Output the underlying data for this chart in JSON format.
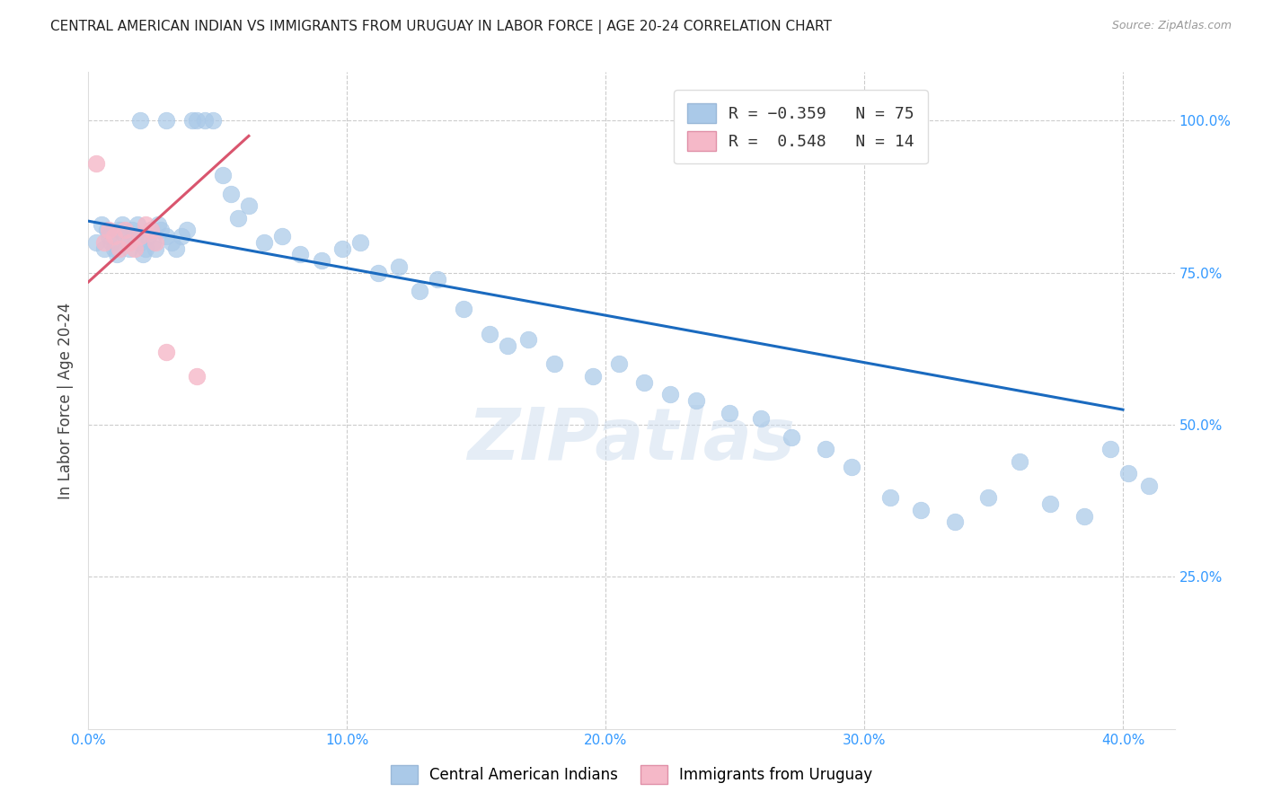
{
  "title": "CENTRAL AMERICAN INDIAN VS IMMIGRANTS FROM URUGUAY IN LABOR FORCE | AGE 20-24 CORRELATION CHART",
  "source": "Source: ZipAtlas.com",
  "ylabel": "In Labor Force | Age 20-24",
  "xlim": [
    0.0,
    0.42
  ],
  "ylim": [
    0.0,
    1.08
  ],
  "xtick_labels": [
    "0.0%",
    "",
    "10.0%",
    "",
    "20.0%",
    "",
    "30.0%",
    "",
    "40.0%"
  ],
  "xtick_vals": [
    0.0,
    0.05,
    0.1,
    0.15,
    0.2,
    0.25,
    0.3,
    0.35,
    0.4
  ],
  "ytick_labels": [
    "25.0%",
    "50.0%",
    "75.0%",
    "100.0%"
  ],
  "ytick_vals": [
    0.25,
    0.5,
    0.75,
    1.0
  ],
  "legend_label1": "R = −0.359   N = 75",
  "legend_label2": "R =  0.548   N = 14",
  "legend_color1": "#aac9e8",
  "legend_color2": "#f5b8c8",
  "blue_line_color": "#1a6abf",
  "pink_line_color": "#d9556e",
  "watermark": "ZIPatlas",
  "blue_scatter_color": "#aac9e8",
  "pink_scatter_color": "#f5b8c8",
  "blue_line_x0": 0.0,
  "blue_line_y0": 0.835,
  "blue_line_x1": 0.4,
  "blue_line_y1": 0.525,
  "pink_line_x0": 0.0,
  "pink_line_y0": 0.735,
  "pink_line_x1": 0.062,
  "pink_line_y1": 0.975,
  "blue_points_x": [
    0.003,
    0.005,
    0.006,
    0.007,
    0.008,
    0.009,
    0.01,
    0.011,
    0.012,
    0.013,
    0.014,
    0.015,
    0.016,
    0.017,
    0.018,
    0.019,
    0.02,
    0.021,
    0.022,
    0.023,
    0.024,
    0.025,
    0.026,
    0.027,
    0.028,
    0.03,
    0.032,
    0.034,
    0.036,
    0.038,
    0.04,
    0.042,
    0.045,
    0.048,
    0.052,
    0.055,
    0.058,
    0.062,
    0.068,
    0.075,
    0.082,
    0.09,
    0.098,
    0.105,
    0.112,
    0.12,
    0.128,
    0.135,
    0.145,
    0.155,
    0.162,
    0.17,
    0.18,
    0.195,
    0.205,
    0.215,
    0.225,
    0.235,
    0.248,
    0.26,
    0.272,
    0.285,
    0.295,
    0.31,
    0.322,
    0.335,
    0.348,
    0.36,
    0.372,
    0.385,
    0.395,
    0.402,
    0.41,
    0.02,
    0.03
  ],
  "blue_points_y": [
    0.8,
    0.83,
    0.79,
    0.82,
    0.81,
    0.8,
    0.79,
    0.78,
    0.82,
    0.83,
    0.81,
    0.8,
    0.79,
    0.82,
    0.81,
    0.83,
    0.8,
    0.78,
    0.79,
    0.81,
    0.82,
    0.8,
    0.79,
    0.83,
    0.82,
    0.81,
    0.8,
    0.79,
    0.81,
    0.82,
    1.0,
    1.0,
    1.0,
    1.0,
    0.91,
    0.88,
    0.84,
    0.86,
    0.8,
    0.81,
    0.78,
    0.77,
    0.79,
    0.8,
    0.75,
    0.76,
    0.72,
    0.74,
    0.69,
    0.65,
    0.63,
    0.64,
    0.6,
    0.58,
    0.6,
    0.57,
    0.55,
    0.54,
    0.52,
    0.51,
    0.48,
    0.46,
    0.43,
    0.38,
    0.36,
    0.34,
    0.38,
    0.44,
    0.37,
    0.35,
    0.46,
    0.42,
    0.4,
    1.0,
    1.0
  ],
  "pink_points_x": [
    0.003,
    0.006,
    0.008,
    0.01,
    0.012,
    0.014,
    0.016,
    0.018,
    0.02,
    0.022,
    0.024,
    0.026,
    0.03,
    0.042
  ],
  "pink_points_y": [
    0.93,
    0.8,
    0.82,
    0.81,
    0.79,
    0.82,
    0.8,
    0.79,
    0.81,
    0.83,
    0.82,
    0.8,
    0.62,
    0.58
  ]
}
